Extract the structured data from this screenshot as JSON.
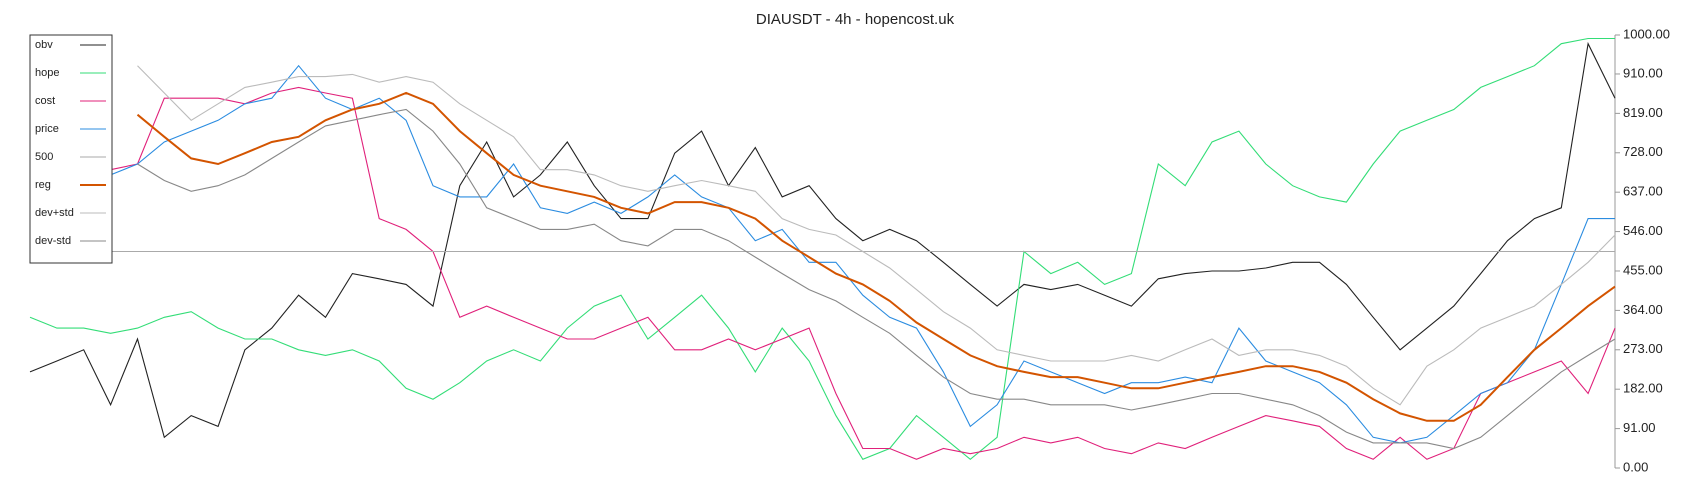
{
  "chart_data": {
    "type": "line",
    "title": "DIAUSDT - 4h - hopencost.uk",
    "ylim": [
      0,
      1000
    ],
    "yticks": [
      {
        "value": 0,
        "label": "0.00"
      },
      {
        "value": 91,
        "label": "91.00"
      },
      {
        "value": 182,
        "label": "182.00"
      },
      {
        "value": 273,
        "label": "273.00"
      },
      {
        "value": 364,
        "label": "364.00"
      },
      {
        "value": 455,
        "label": "455.00"
      },
      {
        "value": 546,
        "label": "546.00"
      },
      {
        "value": 637,
        "label": "637.00"
      },
      {
        "value": 728,
        "label": "728.00"
      },
      {
        "value": 819,
        "label": "819.00"
      },
      {
        "value": 910,
        "label": "910.00"
      },
      {
        "value": 1000,
        "label": "1000.00"
      }
    ],
    "grid": false,
    "legend": "upper left",
    "series": [
      {
        "name": "obv",
        "color": "#222222",
        "values": [
          222,
          247,
          273,
          146,
          298,
          71,
          121,
          96,
          273,
          323,
          399,
          348,
          449,
          437,
          424,
          374,
          652,
          753,
          626,
          677,
          753,
          652,
          576,
          576,
          727,
          778,
          652,
          740,
          626,
          652,
          576,
          525,
          551,
          525,
          475,
          424,
          374,
          424,
          412,
          424,
          399,
          374,
          437,
          449,
          455,
          455,
          462,
          475,
          475,
          424,
          348,
          273,
          323,
          374,
          449,
          525,
          576,
          601,
          980,
          854
        ]
      },
      {
        "name": "hope",
        "color": "#33dd77",
        "values": [
          348,
          323,
          323,
          311,
          323,
          348,
          361,
          323,
          298,
          298,
          273,
          260,
          273,
          247,
          184,
          159,
          197,
          247,
          273,
          247,
          323,
          374,
          399,
          298,
          348,
          399,
          323,
          222,
          323,
          247,
          121,
          20,
          45,
          121,
          71,
          20,
          71,
          500,
          449,
          475,
          424,
          449,
          702,
          652,
          753,
          778,
          702,
          652,
          626,
          614,
          702,
          778,
          803,
          828,
          879,
          904,
          929,
          980,
          992,
          992
        ]
      },
      {
        "name": "cost",
        "color": "#e0207a",
        "values": [
          null,
          null,
          null,
          689,
          702,
          854,
          854,
          854,
          841,
          866,
          879,
          866,
          854,
          576,
          551,
          500,
          348,
          374,
          348,
          323,
          298,
          298,
          323,
          348,
          273,
          273,
          298,
          273,
          298,
          323,
          172,
          45,
          45,
          20,
          45,
          33,
          45,
          71,
          58,
          71,
          45,
          33,
          58,
          45,
          71,
          96,
          121,
          109,
          96,
          45,
          20,
          71,
          20,
          45,
          172,
          197,
          222,
          247,
          172,
          323
        ]
      },
      {
        "name": "price",
        "color": "#2b8ce0",
        "values": [
          null,
          null,
          null,
          677,
          702,
          753,
          778,
          803,
          841,
          854,
          929,
          854,
          828,
          854,
          803,
          652,
          626,
          626,
          702,
          601,
          588,
          614,
          588,
          626,
          677,
          626,
          601,
          525,
          551,
          475,
          475,
          399,
          348,
          323,
          222,
          96,
          146,
          247,
          222,
          197,
          172,
          197,
          197,
          210,
          197,
          323,
          247,
          222,
          197,
          146,
          71,
          58,
          71,
          121,
          172,
          197,
          273,
          424,
          576,
          576
        ]
      },
      {
        "name": "500",
        "color": "#aaaaaa",
        "values": [
          500,
          500,
          500,
          500,
          500,
          500,
          500,
          500,
          500,
          500,
          500,
          500,
          500,
          500,
          500,
          500,
          500,
          500,
          500,
          500,
          500,
          500,
          500,
          500,
          500,
          500,
          500,
          500,
          500,
          500,
          500,
          500,
          500,
          500,
          500,
          500,
          500,
          500,
          500,
          500,
          500,
          500,
          500,
          500,
          500,
          500,
          500,
          500,
          500,
          500,
          500,
          500,
          500,
          500,
          500,
          500,
          500,
          500,
          500,
          500
        ]
      },
      {
        "name": "reg",
        "color": "#d35400",
        "width": 2,
        "values": [
          null,
          null,
          null,
          null,
          816,
          765,
          715,
          702,
          727,
          753,
          765,
          803,
          828,
          841,
          866,
          841,
          778,
          727,
          677,
          652,
          639,
          626,
          601,
          588,
          614,
          614,
          601,
          576,
          525,
          487,
          449,
          424,
          386,
          336,
          298,
          260,
          235,
          222,
          210,
          210,
          197,
          184,
          184,
          197,
          210,
          222,
          235,
          235,
          222,
          197,
          159,
          126,
          109,
          109,
          146,
          210,
          273,
          323,
          374,
          419
        ]
      },
      {
        "name": "dev+std",
        "color": "#bbbbbb",
        "values": [
          null,
          null,
          null,
          null,
          929,
          866,
          803,
          841,
          879,
          891,
          904,
          904,
          909,
          891,
          904,
          891,
          841,
          803,
          765,
          689,
          689,
          677,
          652,
          639,
          652,
          664,
          652,
          639,
          576,
          551,
          538,
          500,
          462,
          412,
          361,
          323,
          273,
          260,
          247,
          247,
          247,
          260,
          247,
          273,
          298,
          260,
          273,
          273,
          260,
          235,
          184,
          146,
          235,
          273,
          323,
          348,
          374,
          424,
          475,
          538
        ]
      },
      {
        "name": "dev-std",
        "color": "#888888",
        "values": [
          null,
          null,
          null,
          null,
          702,
          664,
          639,
          652,
          677,
          715,
          753,
          790,
          803,
          816,
          828,
          778,
          702,
          601,
          576,
          551,
          551,
          563,
          525,
          513,
          551,
          551,
          525,
          487,
          449,
          412,
          386,
          348,
          311,
          260,
          210,
          172,
          159,
          159,
          146,
          146,
          146,
          134,
          146,
          159,
          172,
          172,
          159,
          146,
          121,
          83,
          58,
          58,
          58,
          45,
          71,
          121,
          172,
          222,
          260,
          298
        ]
      }
    ]
  }
}
